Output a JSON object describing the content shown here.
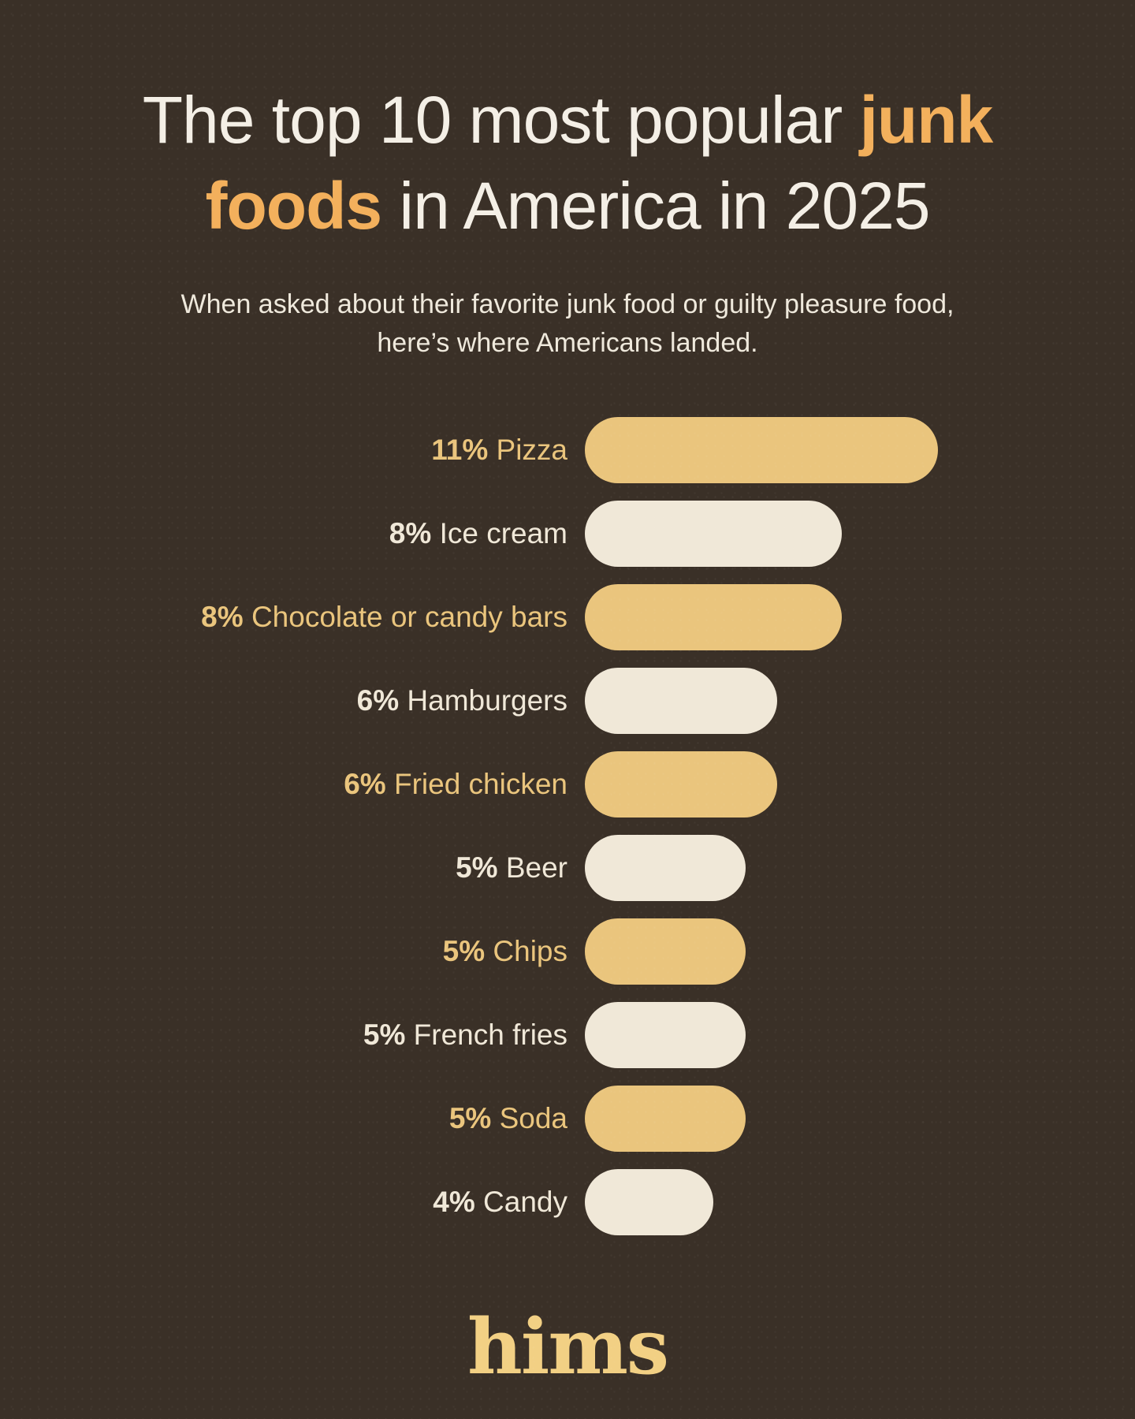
{
  "colors": {
    "background": "#3a3027",
    "gold": "#eac57d",
    "cream": "#f0e8d8",
    "accent_orange": "#f3b05c",
    "title_text": "#f4efe6",
    "logo_gold": "#f2d084"
  },
  "header": {
    "title_line1_regular": "The top 10 most popular ",
    "title_line1_accent": "junk",
    "title_line2_accent": "foods",
    "title_line2_regular": " in America in 2025",
    "subtitle_line1": "When asked about their favorite junk food or guilty pleasure food,",
    "subtitle_line2": "here’s where Americans landed."
  },
  "chart_data": {
    "type": "bar",
    "orientation": "horizontal",
    "title": "The top 10 most popular junk foods in America in 2025",
    "subtitle": "When asked about their favorite junk food or guilty pleasure food, here’s where Americans landed.",
    "unit": "%",
    "xlim": [
      0,
      11
    ],
    "grid": false,
    "legend": false,
    "categories": [
      "Pizza",
      "Ice cream",
      "Chocolate or candy bars",
      "Hamburgers",
      "Fried chicken",
      "Beer",
      "Chips",
      "French fries",
      "Soda",
      "Candy"
    ],
    "values": [
      11,
      8,
      8,
      6,
      6,
      5,
      5,
      5,
      5,
      4
    ],
    "items": [
      {
        "pct": "11%",
        "label": "Pizza",
        "value": 11,
        "tone": "gold"
      },
      {
        "pct": "8%",
        "label": "Ice cream",
        "value": 8,
        "tone": "cream"
      },
      {
        "pct": "8%",
        "label": "Chocolate or candy bars",
        "value": 8,
        "tone": "gold"
      },
      {
        "pct": "6%",
        "label": "Hamburgers",
        "value": 6,
        "tone": "cream"
      },
      {
        "pct": "6%",
        "label": "Fried chicken",
        "value": 6,
        "tone": "gold"
      },
      {
        "pct": "5%",
        "label": "Beer",
        "value": 5,
        "tone": "cream"
      },
      {
        "pct": "5%",
        "label": "Chips",
        "value": 5,
        "tone": "gold"
      },
      {
        "pct": "5%",
        "label": "French fries",
        "value": 5,
        "tone": "cream"
      },
      {
        "pct": "5%",
        "label": "Soda",
        "value": 5,
        "tone": "gold"
      },
      {
        "pct": "4%",
        "label": "Candy",
        "value": 4,
        "tone": "cream"
      }
    ]
  },
  "footer": {
    "logo": "hims"
  }
}
